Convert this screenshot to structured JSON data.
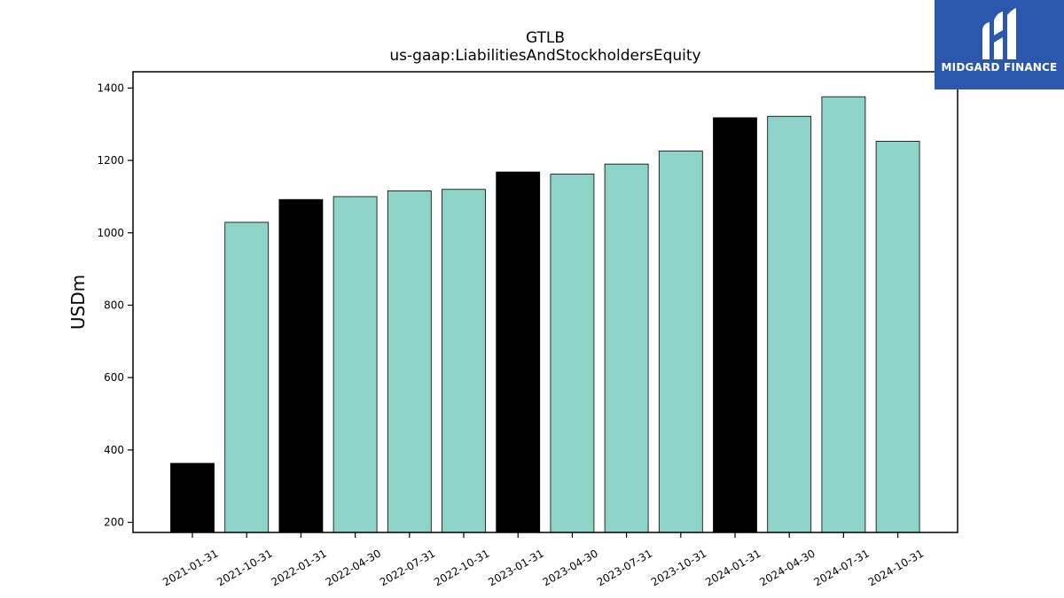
{
  "brand": {
    "name": "MIDGARD FINANCE",
    "bg_color": "#2b58ad",
    "icon": "midgard-logo-icon"
  },
  "chart_data": {
    "type": "bar",
    "title": "GTLB",
    "subtitle": "us-gaap:LiabilitiesAndStockholdersEquity",
    "xlabel": "",
    "ylabel": "USDm",
    "ylim": [
      172,
      1445
    ],
    "yticks": [
      200,
      400,
      600,
      800,
      1000,
      1200,
      1400
    ],
    "grid": false,
    "categories": [
      "2021-01-31",
      "2021-10-31",
      "2022-01-31",
      "2022-04-30",
      "2022-07-31",
      "2022-10-31",
      "2023-01-31",
      "2023-04-30",
      "2023-07-31",
      "2023-10-31",
      "2024-01-31",
      "2024-04-30",
      "2024-07-31",
      "2024-10-31"
    ],
    "values": [
      363,
      1029,
      1092,
      1100,
      1116,
      1120,
      1168,
      1162,
      1190,
      1226,
      1318,
      1322,
      1376,
      1253
    ],
    "bar_colors": [
      "#000000",
      "#8dd3c7",
      "#000000",
      "#8dd3c7",
      "#8dd3c7",
      "#8dd3c7",
      "#000000",
      "#8dd3c7",
      "#8dd3c7",
      "#8dd3c7",
      "#000000",
      "#8dd3c7",
      "#8dd3c7",
      "#8dd3c7"
    ]
  }
}
